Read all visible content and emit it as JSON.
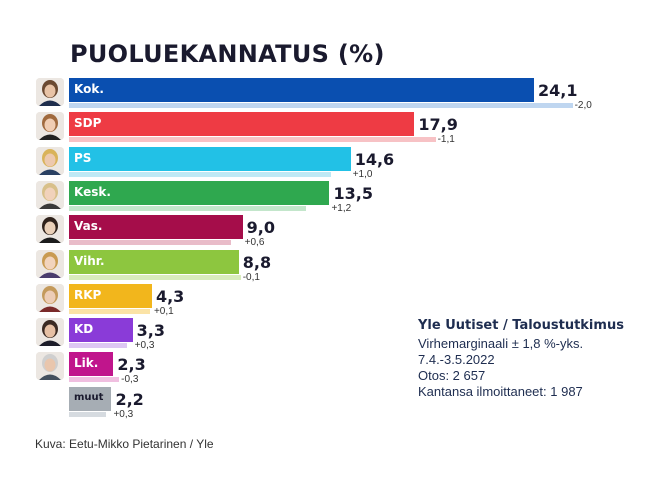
{
  "chart_data": {
    "type": "bar",
    "orientation": "horizontal",
    "title": "PUOLUEKANNATUS (%)",
    "xlabel": "",
    "ylabel": "",
    "xlim": [
      0,
      24.1
    ],
    "categories": [
      "Kok.",
      "SDP",
      "PS",
      "Kesk.",
      "Vas.",
      "Vihr.",
      "RKP",
      "KD",
      "Lik.",
      "muut"
    ],
    "values": [
      24.1,
      17.9,
      14.6,
      13.5,
      9.0,
      8.8,
      4.3,
      3.3,
      2.3,
      2.2
    ],
    "value_labels": [
      "24,1",
      "17,9",
      "14,6",
      "13,5",
      "9,0",
      "8,8",
      "4,3",
      "3,3",
      "2,3",
      "2,2"
    ],
    "changes": [
      -2.0,
      -1.1,
      1.0,
      1.2,
      0.6,
      -0.1,
      0.1,
      0.3,
      -0.3,
      0.3
    ],
    "change_labels": [
      "-2,0",
      "-1,1",
      "+1,0",
      "+1,2",
      "+0,6",
      "-0,1",
      "+0,1",
      "+0,3",
      "-0,3",
      "+0,3"
    ],
    "colors": [
      "#0a4fb0",
      "#ee3b44",
      "#22c1e6",
      "#2fa84f",
      "#a50d4a",
      "#8dc63f",
      "#f2b61c",
      "#8a3bd8",
      "#c0158c",
      "#a6adb4"
    ],
    "prev_colors": [
      "#bfd6f0",
      "#f7c2c5",
      "#bfe9f5",
      "#c3e6cb",
      "#e9bcc9",
      "#d8ecbc",
      "#fbe3a6",
      "#ddc6f3",
      "#f0bfe0",
      "#d6dbe0"
    ],
    "avatars": [
      "person-kok-icon",
      "person-sdp-icon",
      "person-ps-icon",
      "person-kesk-icon",
      "person-vas-icon",
      "person-vihr-icon",
      "person-rkp-icon",
      "person-kd-icon",
      "person-lik-icon",
      ""
    ],
    "grid": false,
    "legend": "none"
  },
  "source_box": {
    "source": "Yle Uutiset / Taloustutkimus",
    "margin_of_error": "Virhemarginaali ± 1,8 %-yks.",
    "period": "7.4.-3.5.2022",
    "sample": "Otos: 2 657",
    "stated_support": "Kantansa ilmoittaneet: 1 987"
  },
  "caption": "Kuva: Eetu-Mikko Pietarinen / Yle"
}
